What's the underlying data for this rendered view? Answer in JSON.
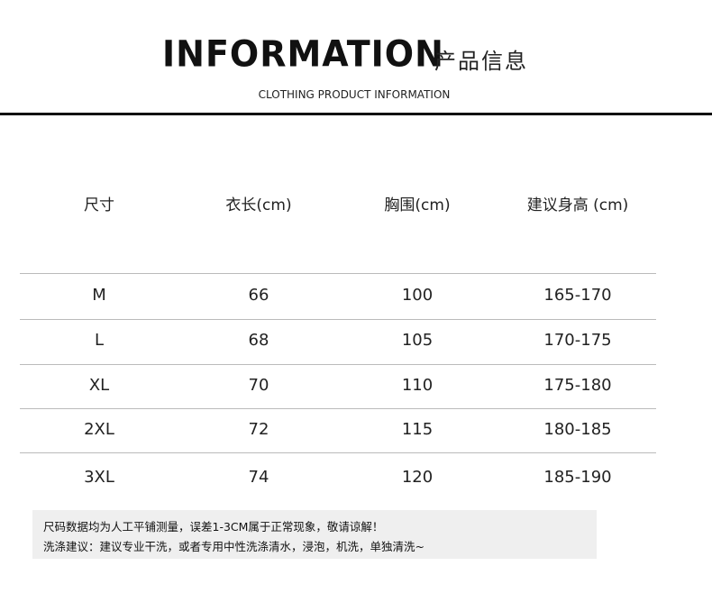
{
  "header": {
    "title": "INFORMATION",
    "title_cn": "产品信息",
    "subtitle": "CLOTHING PRODUCT INFORMATION"
  },
  "table": {
    "columns": [
      "尺寸",
      "衣长(cm)",
      "胸围(cm)",
      "建议身高 (cm)"
    ],
    "rows": [
      [
        "M",
        "66",
        "100",
        "165-170"
      ],
      [
        "L",
        "68",
        "105",
        "170-175"
      ],
      [
        "XL",
        "70",
        "110",
        "175-180"
      ],
      [
        "2XL",
        "72",
        "115",
        "180-185"
      ],
      [
        "3XL",
        "74",
        "120",
        "185-190"
      ]
    ]
  },
  "notes": [
    "尺码数据均为人工平铺测量，误差1-3CM属于正常现象，敬请谅解！",
    "洗涤建议：建议专业干洗，或者专用中性洗涤清水，浸泡，机洗，单独清洗~"
  ]
}
